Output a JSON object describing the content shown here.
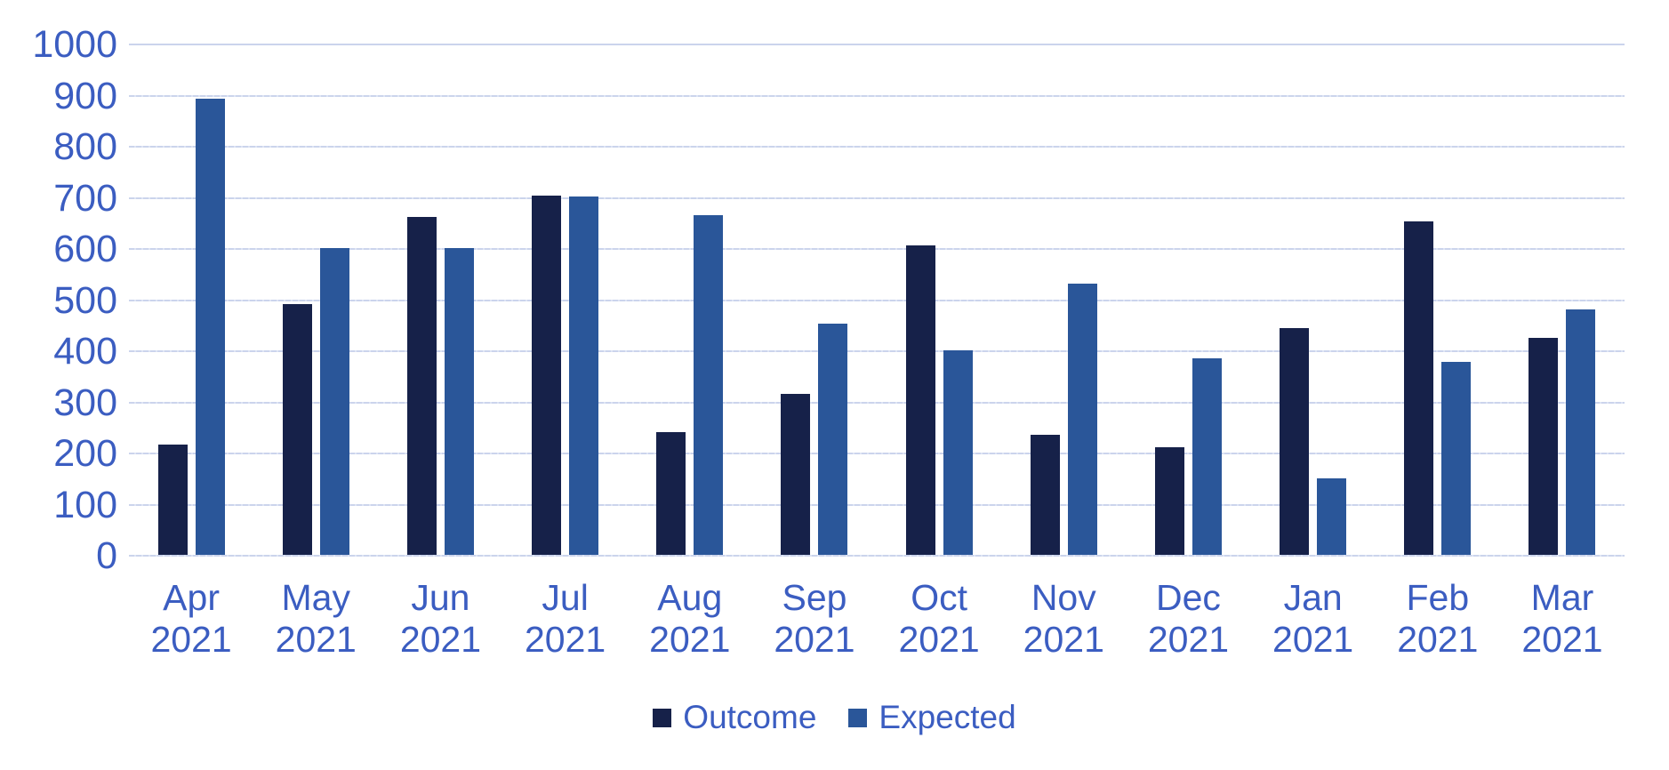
{
  "chart_data": {
    "type": "bar",
    "title": "",
    "xlabel": "",
    "ylabel": "",
    "categories": [
      "Apr 2021",
      "May 2021",
      "Jun 2021",
      "Jul 2021",
      "Aug 2021",
      "Sep 2021",
      "Oct 2021",
      "Nov 2021",
      "Dec 2021",
      "Jan 2021",
      "Feb 2021",
      "Mar 2021"
    ],
    "series": [
      {
        "name": "Outcome",
        "color": "#162149",
        "values": [
          215,
          490,
          660,
          702,
          240,
          315,
          605,
          235,
          210,
          443,
          653,
          425
        ]
      },
      {
        "name": "Expected",
        "color": "#2a5699",
        "values": [
          893,
          600,
          600,
          700,
          665,
          453,
          400,
          530,
          385,
          150,
          378,
          480
        ]
      }
    ],
    "ylim": [
      0,
      1000
    ],
    "yticks": [
      0,
      100,
      200,
      300,
      400,
      500,
      600,
      700,
      800,
      900,
      1000
    ],
    "grid": "horizontal",
    "legend_position": "bottom"
  },
  "legend": {
    "items": [
      {
        "label": "Outcome",
        "color": "#162149"
      },
      {
        "label": "Expected",
        "color": "#2a5699"
      }
    ]
  },
  "colors": {
    "background": "#ffffff",
    "axis_label": "#3b5dc1",
    "gridline": "#cbd4ec",
    "outcome_bar": "#162149",
    "expected_bar": "#2a5699"
  }
}
